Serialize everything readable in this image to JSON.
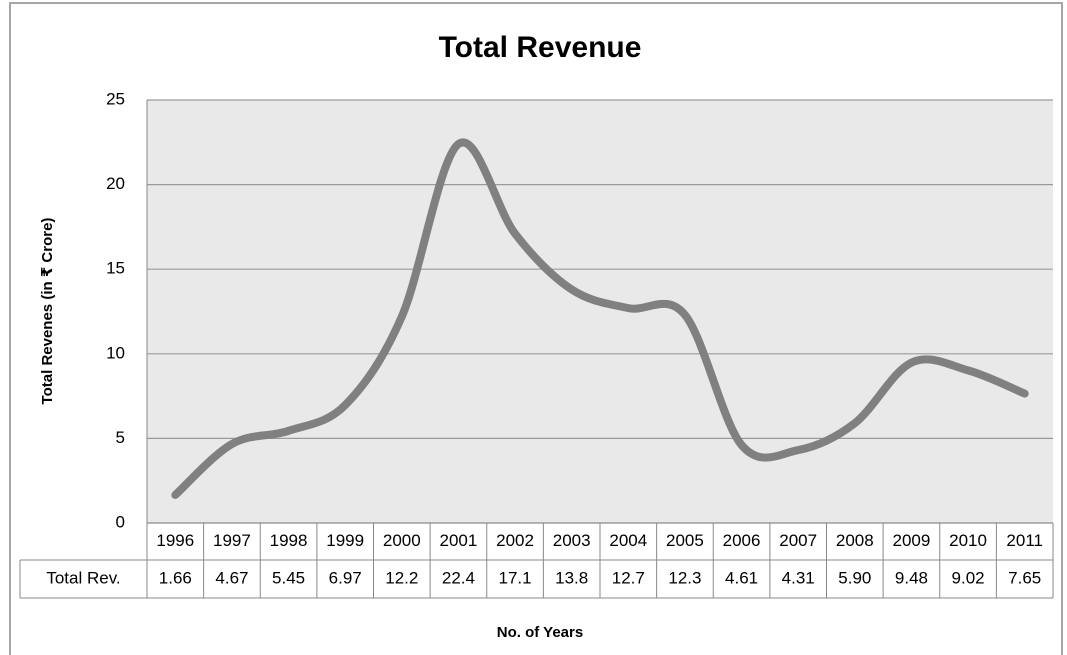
{
  "chart_data": {
    "type": "line",
    "title": "Total Revenue",
    "y_label": "Total Revenes (in ₹ Crore)",
    "x_label": "No. of Years",
    "categories": [
      "1996",
      "1997",
      "1998",
      "1999",
      "2000",
      "2001",
      "2002",
      "2003",
      "2004",
      "2005",
      "2006",
      "2007",
      "2008",
      "2009",
      "2010",
      "2011"
    ],
    "series": [
      {
        "name": "Total Rev.",
        "color": "#808080",
        "values": [
          1.66,
          4.67,
          5.45,
          6.97,
          12.2,
          22.4,
          17.1,
          13.8,
          12.7,
          12.3,
          4.61,
          4.31,
          5.9,
          9.48,
          9.02,
          7.65
        ],
        "value_labels": [
          "1.66",
          "4.67",
          "5.45",
          "6.97",
          "12.2",
          "22.4",
          "17.1",
          "13.8",
          "12.7",
          "12.3",
          "4.61",
          "4.31",
          "5.90",
          "9.48",
          "9.02",
          "7.65"
        ]
      }
    ],
    "ylim": [
      0,
      25
    ],
    "yticks": [
      0,
      5,
      10,
      15,
      20,
      25
    ],
    "grid": true,
    "smooth": true
  }
}
